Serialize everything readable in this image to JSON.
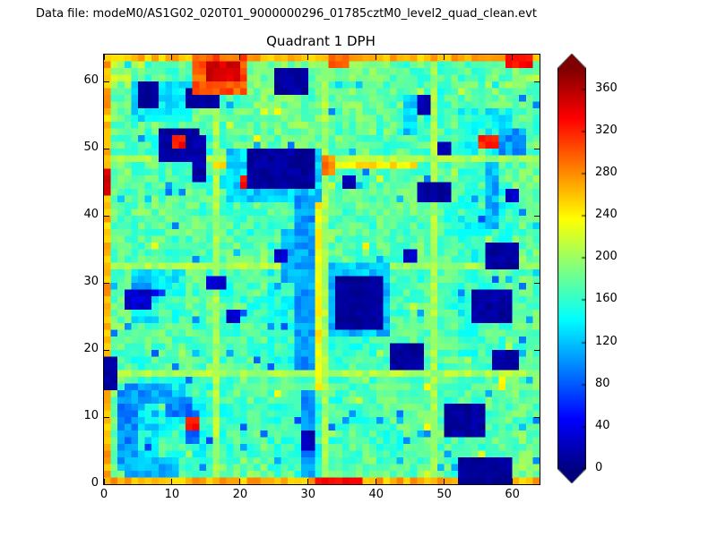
{
  "header": {
    "data_file_label": "Data file: modeM0/AS1G02_020T01_9000000296_01785cztM0_level2_quad_clean.evt"
  },
  "chart_data": {
    "type": "heatmap",
    "title": "Quadrant 1 DPH",
    "x_range": [
      0,
      64
    ],
    "y_range": [
      0,
      64
    ],
    "x_ticks": [
      0,
      10,
      20,
      30,
      40,
      50,
      60
    ],
    "y_ticks": [
      0,
      10,
      20,
      30,
      40,
      50,
      60
    ],
    "colormap": "jet",
    "vmin": 0,
    "vmax": 380,
    "colorbar": {
      "ticks": [
        0,
        40,
        80,
        120,
        160,
        200,
        240,
        280,
        320,
        360
      ],
      "extend": "both",
      "over_color": "#7f0000",
      "under_color": "#00007f"
    },
    "grid_size": 64,
    "base_block_size": 4,
    "base_grid": [
      [
        210,
        170,
        175,
        170,
        178,
        182,
        186,
        180,
        182,
        186,
        180,
        176,
        174,
        172,
        182,
        192
      ],
      [
        186,
        152,
        162,
        172,
        176,
        181,
        181,
        176,
        181,
        186,
        176,
        172,
        166,
        176,
        186,
        176
      ],
      [
        181,
        172,
        176,
        181,
        172,
        176,
        181,
        186,
        176,
        181,
        172,
        166,
        172,
        152,
        142,
        172
      ],
      [
        176,
        166,
        156,
        162,
        172,
        176,
        181,
        176,
        181,
        176,
        172,
        176,
        172,
        142,
        132,
        176
      ],
      [
        181,
        176,
        172,
        162,
        152,
        162,
        176,
        181,
        176,
        172,
        176,
        172,
        176,
        166,
        176,
        181
      ],
      [
        176,
        181,
        176,
        172,
        166,
        172,
        176,
        176,
        172,
        176,
        181,
        176,
        172,
        162,
        152,
        176
      ],
      [
        181,
        176,
        172,
        176,
        172,
        166,
        172,
        176,
        176,
        172,
        176,
        172,
        166,
        152,
        162,
        176
      ],
      [
        176,
        172,
        166,
        172,
        176,
        172,
        162,
        166,
        172,
        176,
        172,
        176,
        172,
        156,
        166,
        181
      ],
      [
        172,
        122,
        142,
        172,
        166,
        172,
        156,
        162,
        152,
        162,
        172,
        166,
        172,
        162,
        172,
        176
      ],
      [
        176,
        142,
        162,
        176,
        172,
        166,
        152,
        156,
        146,
        156,
        166,
        172,
        166,
        152,
        162,
        176
      ],
      [
        181,
        172,
        176,
        172,
        166,
        172,
        162,
        152,
        156,
        162,
        172,
        176,
        172,
        166,
        172,
        176
      ],
      [
        176,
        166,
        172,
        176,
        172,
        166,
        156,
        146,
        162,
        166,
        172,
        166,
        172,
        162,
        166,
        181
      ],
      [
        181,
        152,
        142,
        162,
        172,
        176,
        166,
        162,
        166,
        172,
        176,
        172,
        166,
        172,
        176,
        181
      ],
      [
        176,
        132,
        152,
        156,
        162,
        172,
        166,
        156,
        172,
        166,
        172,
        176,
        172,
        176,
        172,
        176
      ],
      [
        181,
        142,
        162,
        152,
        166,
        172,
        162,
        152,
        166,
        172,
        166,
        172,
        176,
        172,
        176,
        181
      ],
      [
        192,
        172,
        166,
        172,
        176,
        181,
        172,
        162,
        172,
        176,
        172,
        176,
        172,
        176,
        181,
        186
      ]
    ],
    "module_line_indices": [
      16,
      32,
      48
    ],
    "module_line_value": 205,
    "edge_value": 265,
    "noise_amplitude": 45,
    "seed": 42,
    "overlays": [
      {
        "x": 16,
        "y": 47,
        "w": 30,
        "h": 1,
        "v": 245,
        "n": 30
      },
      {
        "x": 31,
        "y": 14,
        "w": 1,
        "h": 34,
        "v": 238,
        "n": 30
      },
      {
        "x": 30,
        "y": 46,
        "w": 4,
        "h": 3,
        "v": 285,
        "n": 30
      },
      {
        "x": 4,
        "y": 54,
        "w": 9,
        "h": 6,
        "v": 135,
        "n": 35
      },
      {
        "x": 18,
        "y": 42,
        "w": 14,
        "h": 8,
        "v": 125,
        "n": 35
      },
      {
        "x": 33,
        "y": 22,
        "w": 9,
        "h": 11,
        "v": 120,
        "n": 35
      },
      {
        "x": 28,
        "y": 17,
        "w": 3,
        "h": 26,
        "v": 105,
        "n": 35
      },
      {
        "x": 26,
        "y": 30,
        "w": 3,
        "h": 8,
        "v": 110,
        "n": 35
      },
      {
        "x": 2,
        "y": 3,
        "w": 3,
        "h": 11,
        "v": 100,
        "n": 35
      },
      {
        "x": 3,
        "y": 12,
        "w": 7,
        "h": 3,
        "v": 105,
        "n": 35
      },
      {
        "x": 9,
        "y": 10,
        "w": 4,
        "h": 3,
        "v": 95,
        "n": 35
      },
      {
        "x": 12,
        "y": 6,
        "w": 2,
        "h": 5,
        "v": 90,
        "n": 35
      },
      {
        "x": 3,
        "y": 1,
        "w": 8,
        "h": 3,
        "v": 115,
        "n": 35
      },
      {
        "x": 56,
        "y": 38,
        "w": 2,
        "h": 10,
        "v": 115,
        "n": 35
      },
      {
        "x": 29,
        "y": 1,
        "w": 2,
        "h": 13,
        "v": 100,
        "n": 35
      },
      {
        "x": 44,
        "y": 52,
        "w": 2,
        "h": 6,
        "v": 125,
        "n": 35
      },
      {
        "x": 58,
        "y": 49,
        "w": 4,
        "h": 4,
        "v": 105,
        "n": 35
      },
      {
        "x": 5,
        "y": 56,
        "w": 3,
        "h": 4,
        "v": 12,
        "n": 18
      },
      {
        "x": 12,
        "y": 56,
        "w": 5,
        "h": 3,
        "v": 12,
        "n": 18
      },
      {
        "x": 25,
        "y": 58,
        "w": 5,
        "h": 4,
        "v": 12,
        "n": 18
      },
      {
        "x": 8,
        "y": 48,
        "w": 6,
        "h": 5,
        "v": 12,
        "n": 18
      },
      {
        "x": 13,
        "y": 45,
        "w": 2,
        "h": 7,
        "v": 15,
        "n": 18
      },
      {
        "x": 21,
        "y": 44,
        "w": 10,
        "h": 6,
        "v": 12,
        "n": 18
      },
      {
        "x": 35,
        "y": 44,
        "w": 2,
        "h": 2,
        "v": 20,
        "n": 18
      },
      {
        "x": 46,
        "y": 42,
        "w": 5,
        "h": 3,
        "v": 12,
        "n": 18
      },
      {
        "x": 56,
        "y": 32,
        "w": 5,
        "h": 4,
        "v": 12,
        "n": 18
      },
      {
        "x": 34,
        "y": 23,
        "w": 7,
        "h": 8,
        "v": 10,
        "n": 14
      },
      {
        "x": 42,
        "y": 17,
        "w": 5,
        "h": 4,
        "v": 12,
        "n": 18
      },
      {
        "x": 54,
        "y": 24,
        "w": 6,
        "h": 5,
        "v": 12,
        "n": 18
      },
      {
        "x": 50,
        "y": 7,
        "w": 6,
        "h": 5,
        "v": 12,
        "n": 18
      },
      {
        "x": 57,
        "y": 17,
        "w": 4,
        "h": 3,
        "v": 15,
        "n": 18
      },
      {
        "x": 52,
        "y": 0,
        "w": 8,
        "h": 4,
        "v": 10,
        "n": 14
      },
      {
        "x": 0,
        "y": 14,
        "w": 2,
        "h": 5,
        "v": 12,
        "n": 18
      },
      {
        "x": 3,
        "y": 26,
        "w": 4,
        "h": 3,
        "v": 30,
        "n": 25
      },
      {
        "x": 15,
        "y": 29,
        "w": 3,
        "h": 2,
        "v": 25,
        "n": 20
      },
      {
        "x": 46,
        "y": 55,
        "w": 2,
        "h": 3,
        "v": 20,
        "n": 18
      },
      {
        "x": 29,
        "y": 5,
        "w": 2,
        "h": 3,
        "v": 18,
        "n": 18
      },
      {
        "x": 18,
        "y": 24,
        "w": 2,
        "h": 2,
        "v": 25,
        "n": 20
      },
      {
        "x": 44,
        "y": 33,
        "w": 2,
        "h": 2,
        "v": 25,
        "n": 20
      },
      {
        "x": 49,
        "y": 49,
        "w": 2,
        "h": 2,
        "v": 25,
        "n": 20
      },
      {
        "x": 25,
        "y": 33,
        "w": 2,
        "h": 2,
        "v": 25,
        "n": 20
      },
      {
        "x": 59,
        "y": 42,
        "w": 2,
        "h": 2,
        "v": 25,
        "n": 20
      },
      {
        "x": 13,
        "y": 58,
        "w": 8,
        "h": 6,
        "v": 300,
        "n": 35
      },
      {
        "x": 15,
        "y": 60,
        "w": 5,
        "h": 3,
        "v": 350,
        "n": 25
      },
      {
        "x": 10,
        "y": 50,
        "w": 2,
        "h": 2,
        "v": 330,
        "n": 25
      },
      {
        "x": 12,
        "y": 8,
        "w": 2,
        "h": 2,
        "v": 330,
        "n": 25
      },
      {
        "x": 33,
        "y": 62,
        "w": 3,
        "h": 2,
        "v": 300,
        "n": 25
      },
      {
        "x": 59,
        "y": 62,
        "w": 4,
        "h": 2,
        "v": 330,
        "n": 25
      },
      {
        "x": 55,
        "y": 50,
        "w": 3,
        "h": 2,
        "v": 320,
        "n": 25
      },
      {
        "x": 0,
        "y": 43,
        "w": 1,
        "h": 4,
        "v": 345,
        "n": 20
      },
      {
        "x": 31,
        "y": 0,
        "w": 7,
        "h": 1,
        "v": 330,
        "n": 20
      },
      {
        "x": 20,
        "y": 44,
        "w": 1,
        "h": 2,
        "v": 330,
        "n": 20
      }
    ]
  }
}
